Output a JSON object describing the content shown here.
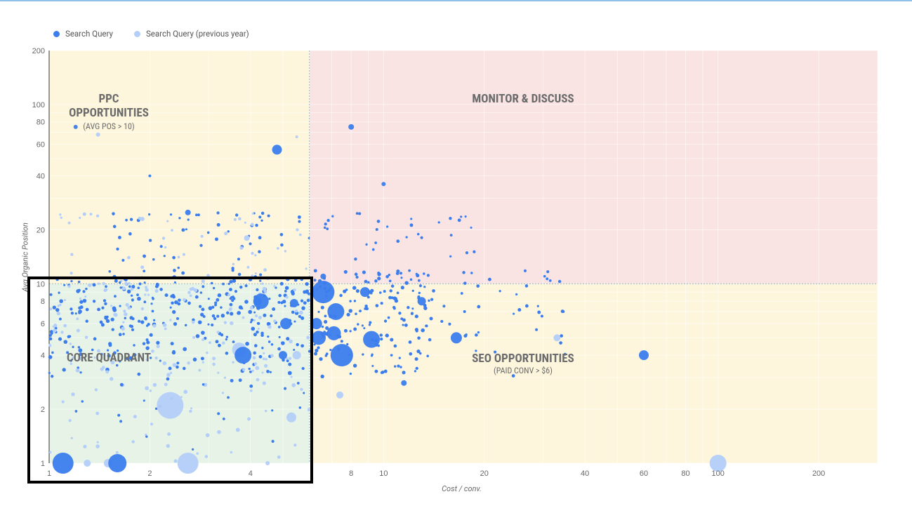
{
  "legend": [
    {
      "label": "Search Query",
      "color": "#3b7ded"
    },
    {
      "label": "Search Query (previous year)",
      "color": "#b3cef9"
    }
  ],
  "axes": {
    "ylabel": "Avg Organic Position",
    "xlabel": "Cost / conv."
  },
  "quadrants": {
    "ppc": {
      "title1": "PPC",
      "title2": "OPPORTUNITIES",
      "sub": "(AVG POS > 10)"
    },
    "monitor": {
      "title": "MONITOR & DISCUSS"
    },
    "core": {
      "title": "CORE QUADRANT"
    },
    "seo": {
      "title": "SEO OPPORTUNITIES",
      "sub": "(PAID CONV > $6)"
    }
  },
  "chart_data": {
    "type": "scatter",
    "xscale": "log",
    "yscale": "log",
    "xlim": [
      1,
      300
    ],
    "ylim": [
      1,
      200
    ],
    "xticks": [
      1,
      2,
      4,
      8,
      10,
      20,
      40,
      60,
      80,
      100,
      200
    ],
    "yticks": [
      1,
      2,
      4,
      6,
      8,
      10,
      20,
      40,
      60,
      80,
      100,
      200
    ],
    "xlabel": "Cost / conv.",
    "ylabel": "Avg Organic Position",
    "thresholds": {
      "x": 6,
      "y": 10
    },
    "quadrant_colors": {
      "ppc": "#fdf5dc",
      "monitor": "#f9e3e3",
      "core": "#e6f3e6",
      "seo": "#fdf5dc"
    },
    "series": [
      {
        "name": "Search Query",
        "color": "#3b7ded",
        "points": [
          [
            1.1,
            1,
            15
          ],
          [
            1.6,
            1,
            13
          ],
          [
            4.3,
            8,
            11
          ],
          [
            3.8,
            4,
            12
          ],
          [
            4.8,
            56,
            7
          ],
          [
            8,
            75,
            4
          ],
          [
            6.6,
            9,
            16
          ],
          [
            7.5,
            4,
            16
          ],
          [
            9.2,
            4.9,
            12
          ],
          [
            7.2,
            7,
            12
          ],
          [
            6.4,
            5,
            10
          ],
          [
            6.3,
            6,
            8
          ],
          [
            5.1,
            6,
            8
          ],
          [
            5,
            4,
            6
          ],
          [
            16.5,
            5,
            8
          ],
          [
            60,
            4,
            7
          ],
          [
            13,
            8,
            6
          ],
          [
            6.6,
            11,
            4
          ],
          [
            2.6,
            25,
            4
          ],
          [
            10,
            36,
            3
          ],
          [
            11.5,
            2.8,
            4
          ],
          [
            1.2,
            75,
            3
          ],
          [
            2,
            40,
            2
          ],
          [
            7.1,
            5.3,
            10
          ],
          [
            8.8,
            9,
            7
          ],
          [
            5.4,
            7.8,
            6
          ],
          [
            4.2,
            8,
            6
          ]
        ]
      },
      {
        "name": "Search Query (previous year)",
        "color": "#b3cef9",
        "points": [
          [
            2.3,
            2.1,
            19
          ],
          [
            2.6,
            1,
            15
          ],
          [
            1.5,
            1,
            6
          ],
          [
            3.7,
            4.3,
            10
          ],
          [
            5.3,
            1.8,
            7
          ],
          [
            100,
            1,
            12
          ],
          [
            33,
            5,
            5
          ],
          [
            3.9,
            18,
            4
          ],
          [
            4.5,
            1,
            3
          ],
          [
            1.3,
            1,
            5
          ],
          [
            5.5,
            4,
            6
          ],
          [
            7.4,
            2.4,
            5
          ],
          [
            1.4,
            68,
            3
          ],
          [
            5.5,
            66,
            2
          ],
          [
            1.9,
            23,
            3
          ]
        ]
      }
    ]
  }
}
